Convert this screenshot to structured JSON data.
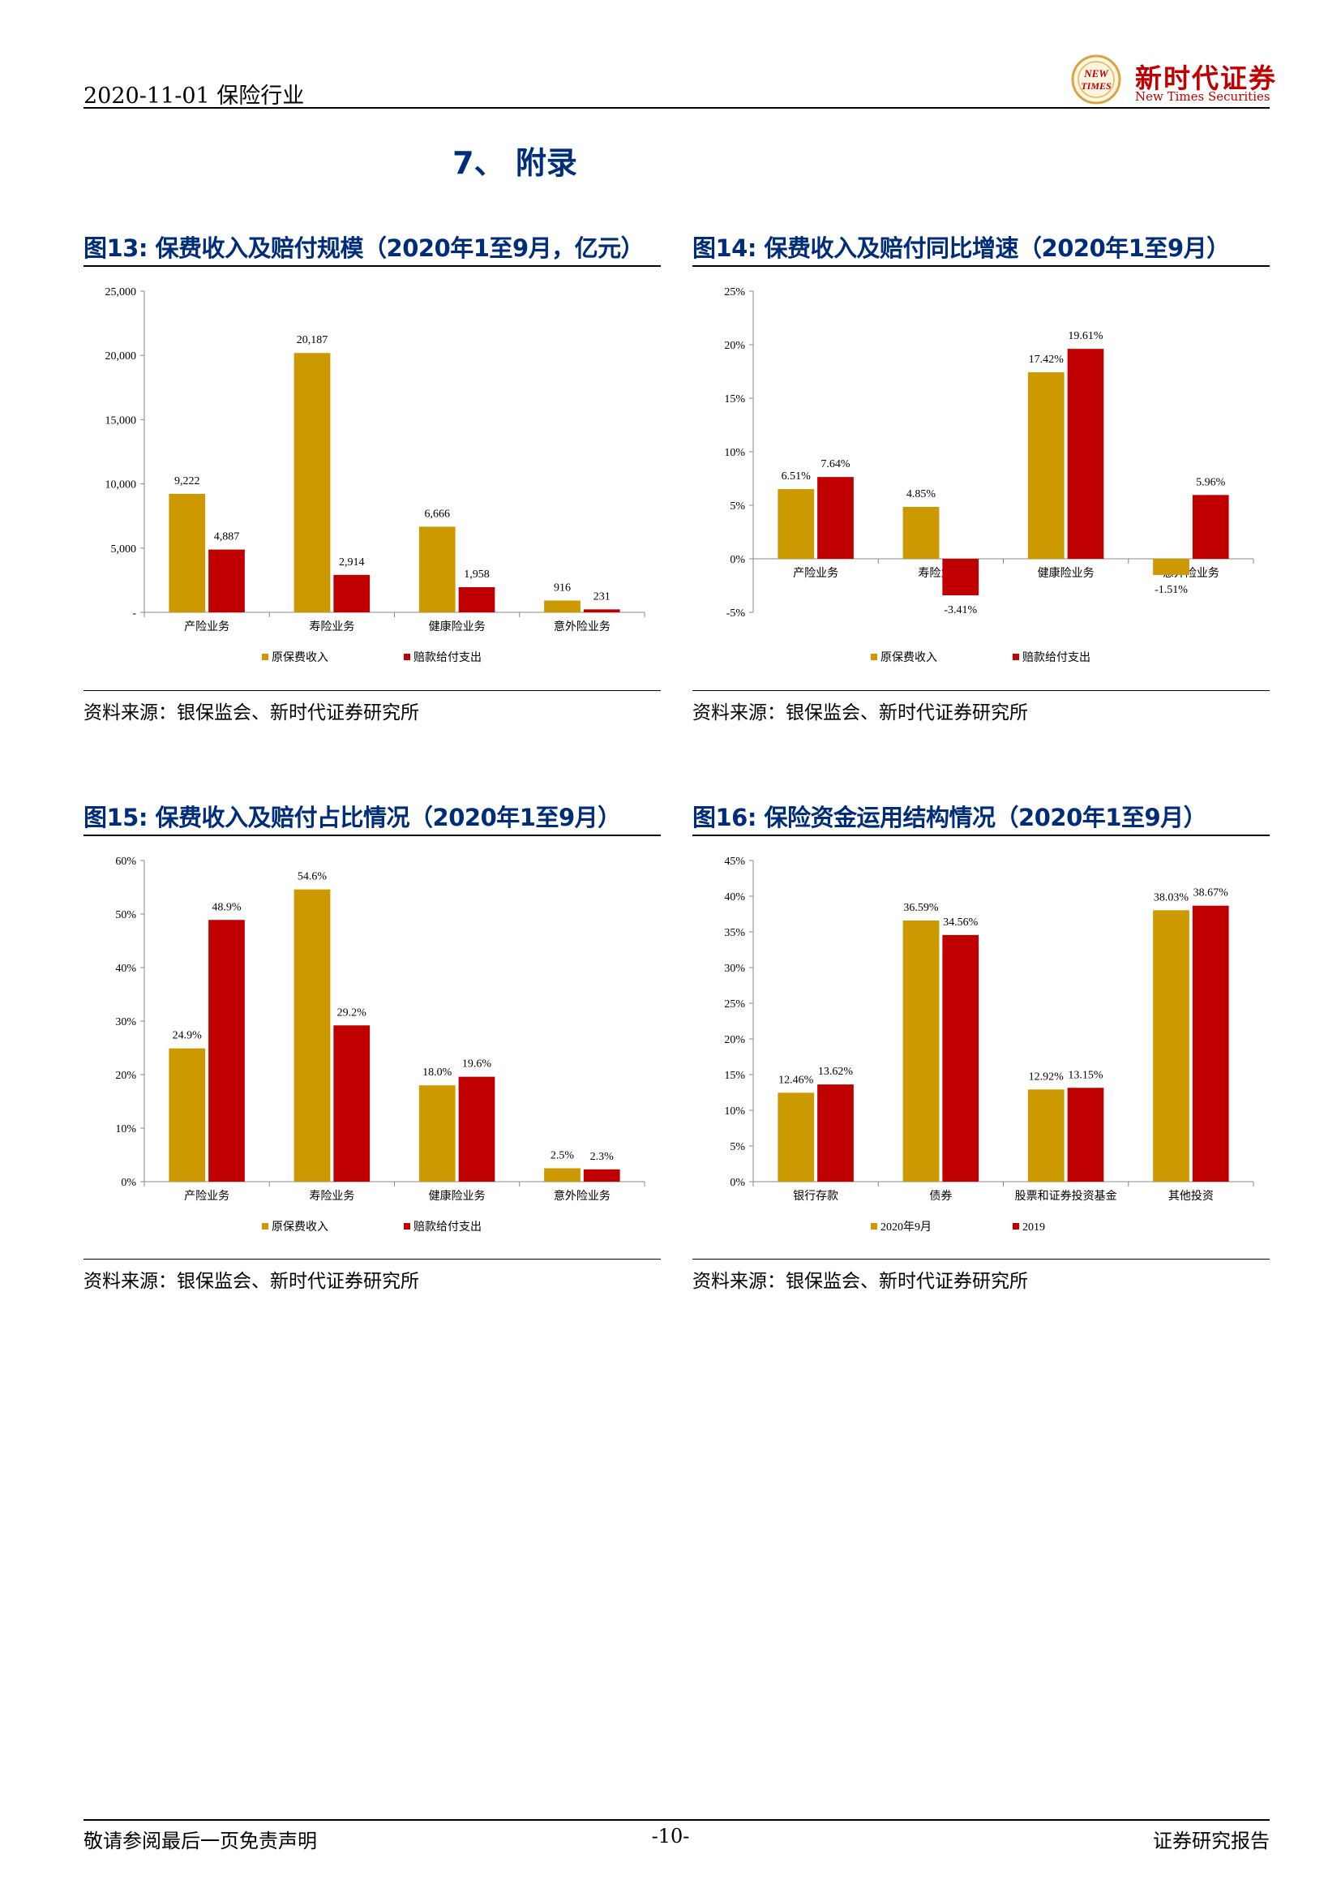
{
  "header": {
    "left_text": "2020-11-01  保险行业",
    "logo_cn": "新时代证券",
    "logo_en": "New Times Securities",
    "logo_mark_text": "NEW TIMES"
  },
  "section_title": "7、 附录",
  "figures": [
    {
      "title": "图13:   保费收入及赔付规模（2020年1至9月，亿元）",
      "source": "资料来源：银保监会、新时代证券研究所",
      "chart_data": {
        "type": "bar",
        "categories": [
          "产险业务",
          "寿险业务",
          "健康险业务",
          "意外险业务"
        ],
        "series": [
          {
            "name": "原保费收入",
            "values": [
              9222,
              20187,
              6666,
              916
            ],
            "labels": [
              "9,222",
              "20,187",
              "6,666",
              "916"
            ]
          },
          {
            "name": "赔款给付支出",
            "values": [
              4887,
              2914,
              1958,
              231
            ],
            "labels": [
              "4,887",
              "2,914",
              "1,958",
              "231"
            ]
          }
        ],
        "ylim": [
          0,
          25000
        ],
        "yticks": [
          0,
          5000,
          10000,
          15000,
          20000,
          25000
        ],
        "ytick_labels": [
          "-",
          "5,000",
          "10,000",
          "15,000",
          "20,000",
          "25,000"
        ],
        "legend": "bottom",
        "colors": [
          "#cc9900",
          "#c00000"
        ]
      }
    },
    {
      "title": "图14:   保费收入及赔付同比增速（2020年1至9月）",
      "source": "资料来源：银保监会、新时代证券研究所",
      "chart_data": {
        "type": "bar",
        "categories": [
          "产险业务",
          "寿险业务",
          "健康险业务",
          "意外险业务"
        ],
        "series": [
          {
            "name": "原保费收入",
            "values": [
              6.51,
              4.85,
              17.42,
              -1.51
            ],
            "labels": [
              "6.51%",
              "4.85%",
              "17.42%",
              "-1.51%"
            ]
          },
          {
            "name": "赔款给付支出",
            "values": [
              7.64,
              -3.41,
              19.61,
              5.96
            ],
            "labels": [
              "7.64%",
              "-3.41%",
              "19.61%",
              "5.96%"
            ]
          }
        ],
        "ylim": [
          -5,
          25
        ],
        "yticks": [
          -5,
          0,
          5,
          10,
          15,
          20,
          25
        ],
        "ytick_labels": [
          "-5%",
          "0%",
          "5%",
          "10%",
          "15%",
          "20%",
          "25%"
        ],
        "legend": "bottom",
        "colors": [
          "#cc9900",
          "#c00000"
        ]
      }
    },
    {
      "title": "图15:   保费收入及赔付占比情况（2020年1至9月）",
      "source": "资料来源：银保监会、新时代证券研究所",
      "chart_data": {
        "type": "bar",
        "categories": [
          "产险业务",
          "寿险业务",
          "健康险业务",
          "意外险业务"
        ],
        "series": [
          {
            "name": "原保费收入",
            "values": [
              24.9,
              54.6,
              18.0,
              2.5
            ],
            "labels": [
              "24.9%",
              "54.6%",
              "18.0%",
              "2.5%"
            ]
          },
          {
            "name": "赔款给付支出",
            "values": [
              48.9,
              29.2,
              19.6,
              2.3
            ],
            "labels": [
              "48.9%",
              "29.2%",
              "19.6%",
              "2.3%"
            ]
          }
        ],
        "ylim": [
          0,
          60
        ],
        "yticks": [
          0,
          10,
          20,
          30,
          40,
          50,
          60
        ],
        "ytick_labels": [
          "0%",
          "10%",
          "20%",
          "30%",
          "40%",
          "50%",
          "60%"
        ],
        "legend": "bottom",
        "colors": [
          "#cc9900",
          "#c00000"
        ]
      }
    },
    {
      "title": "图16:   保险资金运用结构情况（2020年1至9月）",
      "source": "资料来源：银保监会、新时代证券研究所",
      "chart_data": {
        "type": "bar",
        "categories": [
          "银行存款",
          "债券",
          "股票和证券投资基金",
          "其他投资"
        ],
        "series": [
          {
            "name": "2020年9月",
            "values": [
              12.46,
              36.59,
              12.92,
              38.03
            ],
            "labels": [
              "12.46%",
              "36.59%",
              "12.92%",
              "38.03%"
            ]
          },
          {
            "name": "2019",
            "values": [
              13.62,
              34.56,
              13.15,
              38.67
            ],
            "labels": [
              "13.62%",
              "34.56%",
              "13.15%",
              "38.67%"
            ]
          }
        ],
        "ylim": [
          0,
          45
        ],
        "yticks": [
          0,
          5,
          10,
          15,
          20,
          25,
          30,
          35,
          40,
          45
        ],
        "ytick_labels": [
          "0%",
          "5%",
          "10%",
          "15%",
          "20%",
          "25%",
          "30%",
          "35%",
          "40%",
          "45%"
        ],
        "legend": "bottom",
        "colors": [
          "#cc9900",
          "#c00000"
        ]
      }
    }
  ],
  "footer": {
    "left": "敬请参阅最后一页免责声明",
    "center": "-10-",
    "right": "证券研究报告"
  }
}
